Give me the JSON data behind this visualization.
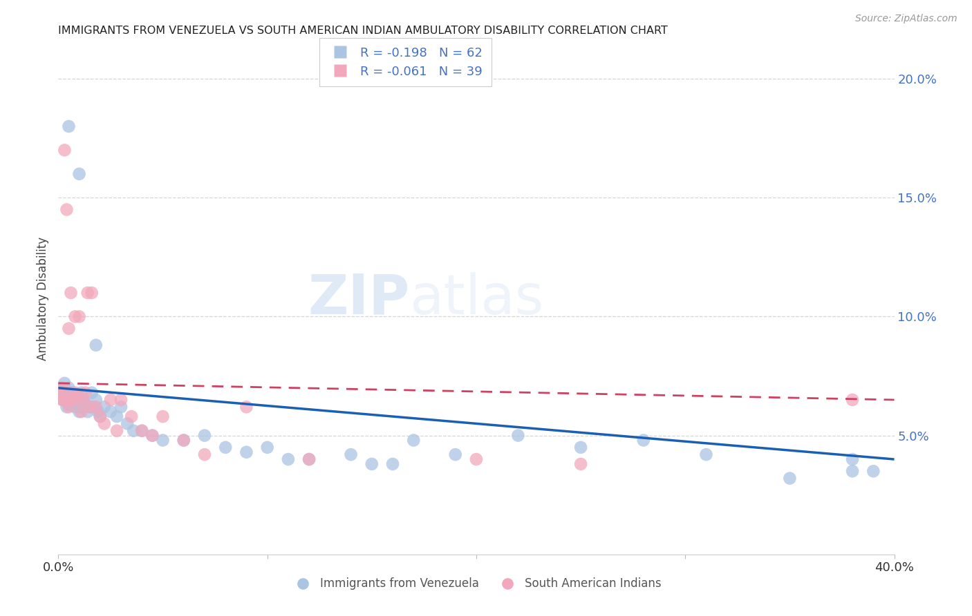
{
  "title": "IMMIGRANTS FROM VENEZUELA VS SOUTH AMERICAN INDIAN AMBULATORY DISABILITY CORRELATION CHART",
  "source": "Source: ZipAtlas.com",
  "ylabel": "Ambulatory Disability",
  "xlim": [
    0.0,
    0.4
  ],
  "ylim": [
    0.0,
    0.215
  ],
  "yticks": [
    0.05,
    0.1,
    0.15,
    0.2
  ],
  "ytick_labels": [
    "5.0%",
    "10.0%",
    "15.0%",
    "20.0%"
  ],
  "legend_blue_label": "Immigrants from Venezuela",
  "legend_pink_label": "South American Indians",
  "blue_R": "R = -0.198",
  "blue_N": "N = 62",
  "pink_R": "R = -0.061",
  "pink_N": "N = 39",
  "blue_color": "#aac4e2",
  "pink_color": "#f2a8bc",
  "blue_line_color": "#1a5fb4",
  "pink_line_color": "#d04060",
  "background_color": "#ffffff",
  "blue_x": [
    0.001,
    0.002,
    0.002,
    0.003,
    0.003,
    0.004,
    0.004,
    0.005,
    0.005,
    0.006,
    0.006,
    0.007,
    0.007,
    0.008,
    0.008,
    0.009,
    0.009,
    0.01,
    0.01,
    0.011,
    0.011,
    0.012,
    0.013,
    0.014,
    0.015,
    0.016,
    0.017,
    0.018,
    0.019,
    0.02,
    0.022,
    0.025,
    0.028,
    0.03,
    0.033,
    0.036,
    0.04,
    0.045,
    0.05,
    0.06,
    0.07,
    0.08,
    0.09,
    0.1,
    0.11,
    0.12,
    0.14,
    0.15,
    0.16,
    0.17,
    0.19,
    0.22,
    0.25,
    0.28,
    0.31,
    0.35,
    0.38,
    0.005,
    0.01,
    0.018,
    0.38,
    0.39
  ],
  "blue_y": [
    0.07,
    0.068,
    0.065,
    0.072,
    0.065,
    0.068,
    0.062,
    0.07,
    0.063,
    0.068,
    0.064,
    0.067,
    0.065,
    0.065,
    0.062,
    0.063,
    0.067,
    0.065,
    0.06,
    0.062,
    0.068,
    0.065,
    0.063,
    0.06,
    0.062,
    0.068,
    0.062,
    0.065,
    0.06,
    0.058,
    0.062,
    0.06,
    0.058,
    0.062,
    0.055,
    0.052,
    0.052,
    0.05,
    0.048,
    0.048,
    0.05,
    0.045,
    0.043,
    0.045,
    0.04,
    0.04,
    0.042,
    0.038,
    0.038,
    0.048,
    0.042,
    0.05,
    0.045,
    0.048,
    0.042,
    0.032,
    0.035,
    0.18,
    0.16,
    0.088,
    0.04,
    0.035
  ],
  "pink_x": [
    0.001,
    0.002,
    0.002,
    0.003,
    0.003,
    0.004,
    0.004,
    0.005,
    0.005,
    0.006,
    0.006,
    0.007,
    0.008,
    0.008,
    0.009,
    0.01,
    0.011,
    0.012,
    0.013,
    0.014,
    0.015,
    0.016,
    0.018,
    0.02,
    0.022,
    0.025,
    0.028,
    0.03,
    0.035,
    0.04,
    0.045,
    0.05,
    0.06,
    0.07,
    0.09,
    0.12,
    0.2,
    0.25,
    0.38
  ],
  "pink_y": [
    0.068,
    0.065,
    0.07,
    0.065,
    0.17,
    0.065,
    0.145,
    0.062,
    0.095,
    0.065,
    0.11,
    0.068,
    0.068,
    0.1,
    0.065,
    0.1,
    0.06,
    0.065,
    0.068,
    0.11,
    0.062,
    0.11,
    0.062,
    0.058,
    0.055,
    0.065,
    0.052,
    0.065,
    0.058,
    0.052,
    0.05,
    0.058,
    0.048,
    0.042,
    0.062,
    0.04,
    0.04,
    0.038,
    0.065
  ],
  "blue_line_start_y": 0.07,
  "blue_line_end_y": 0.04,
  "pink_line_start_y": 0.072,
  "pink_line_end_y": 0.065
}
